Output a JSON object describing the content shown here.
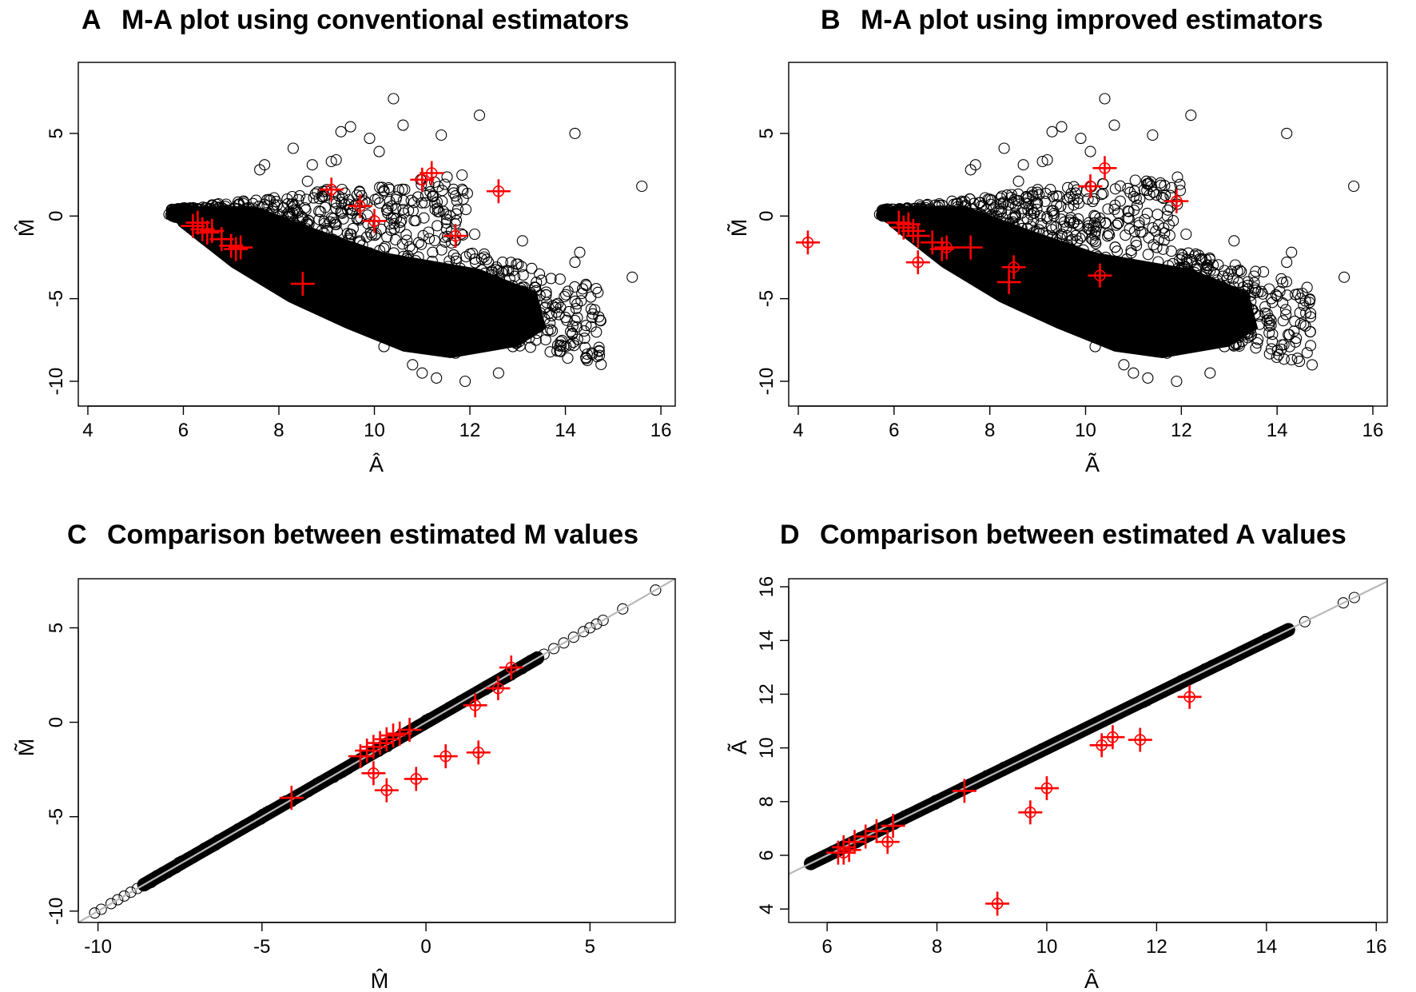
{
  "figure": {
    "colors": {
      "circle": "#000000",
      "highlight": "#ff0000",
      "identity_line": "#b8b8b8",
      "band_core": "#d0d0d0"
    }
  },
  "chart_data": [
    {
      "id": "A",
      "panel_letter": "A",
      "type": "scatter",
      "title": "M-A plot using conventional estimators",
      "xlabel": "Â",
      "ylabel": "M̂",
      "xlim": [
        3.8,
        16.3
      ],
      "ylim": [
        -11.5,
        9.3
      ],
      "xticks": [
        4,
        6,
        8,
        10,
        12,
        14,
        16
      ],
      "yticks": [
        -10,
        -5,
        0,
        5
      ],
      "identity_line": false,
      "background_points": [
        [
          10.4,
          7.1
        ],
        [
          10.6,
          5.5
        ],
        [
          9.5,
          5.4
        ],
        [
          9.3,
          5.1
        ],
        [
          9.9,
          4.7
        ],
        [
          11.4,
          4.9
        ],
        [
          12.2,
          6.1
        ],
        [
          14.2,
          5.0
        ],
        [
          15.6,
          1.8
        ],
        [
          10.1,
          3.9
        ],
        [
          9.1,
          3.3
        ],
        [
          9.2,
          3.4
        ],
        [
          8.3,
          4.1
        ],
        [
          8.7,
          3.1
        ],
        [
          7.7,
          3.1
        ],
        [
          7.6,
          2.8
        ],
        [
          8.6,
          2.1
        ],
        [
          8.9,
          1.2
        ],
        [
          9.0,
          1.6
        ],
        [
          9.3,
          0.3
        ],
        [
          10.6,
          0.4
        ],
        [
          11.5,
          0.1
        ],
        [
          12.1,
          -1.1
        ],
        [
          12.3,
          -2.3
        ],
        [
          12.0,
          -2.3
        ],
        [
          13.1,
          -1.5
        ],
        [
          14.3,
          -2.2
        ],
        [
          14.2,
          -2.8
        ],
        [
          15.4,
          -3.7
        ],
        [
          11.5,
          -3.5
        ],
        [
          11.7,
          -3.5
        ],
        [
          12.9,
          -3.3
        ],
        [
          12.6,
          -3.3
        ],
        [
          13.1,
          -4.3
        ],
        [
          12.1,
          -3.9
        ],
        [
          13.6,
          -4.6
        ],
        [
          14.4,
          -7.4
        ],
        [
          14.7,
          -6.1
        ],
        [
          12.9,
          -7.9
        ],
        [
          12.6,
          -9.5
        ],
        [
          11.9,
          -10.0
        ],
        [
          11.3,
          -9.8
        ],
        [
          11.0,
          -9.5
        ],
        [
          10.8,
          -9.0
        ],
        [
          13.4,
          -7.1
        ],
        [
          10.2,
          -7.9
        ],
        [
          12.0,
          -6.5
        ],
        [
          11.7,
          -8.3
        ],
        [
          14.1,
          -7.8
        ],
        [
          13.9,
          -7.6
        ],
        [
          8.1,
          -2.0
        ],
        [
          7.3,
          -1.4
        ],
        [
          8.6,
          -0.5
        ],
        [
          9.7,
          -1.5
        ],
        [
          10.3,
          -2.8
        ],
        [
          7.0,
          0.2
        ],
        [
          6.7,
          0.7
        ],
        [
          7.9,
          1.1
        ]
      ],
      "highlights": [
        {
          "x": 6.2,
          "y": -0.6,
          "circled": false
        },
        {
          "x": 6.3,
          "y": -0.4,
          "circled": false
        },
        {
          "x": 6.4,
          "y": -0.8,
          "circled": false
        },
        {
          "x": 6.5,
          "y": -1.0,
          "circled": false
        },
        {
          "x": 6.6,
          "y": -0.9,
          "circled": false
        },
        {
          "x": 6.8,
          "y": -1.4,
          "circled": false
        },
        {
          "x": 7.0,
          "y": -1.8,
          "circled": false
        },
        {
          "x": 7.1,
          "y": -2.0,
          "circled": false
        },
        {
          "x": 7.2,
          "y": -1.9,
          "circled": false
        },
        {
          "x": 8.5,
          "y": -4.1,
          "circled": false
        },
        {
          "x": 9.1,
          "y": 1.6,
          "circled": true
        },
        {
          "x": 9.7,
          "y": 0.6,
          "circled": true
        },
        {
          "x": 10.0,
          "y": -0.3,
          "circled": true
        },
        {
          "x": 11.0,
          "y": 2.2,
          "circled": true
        },
        {
          "x": 11.2,
          "y": 2.6,
          "circled": true
        },
        {
          "x": 11.7,
          "y": -1.2,
          "circled": true
        },
        {
          "x": 12.6,
          "y": 1.5,
          "circled": true
        }
      ]
    },
    {
      "id": "B",
      "panel_letter": "B",
      "type": "scatter",
      "title": "M-A plot using improved estimators",
      "xlabel": "Ã",
      "ylabel": "M̃",
      "xlim": [
        3.8,
        16.3
      ],
      "ylim": [
        -11.5,
        9.3
      ],
      "xticks": [
        4,
        6,
        8,
        10,
        12,
        14,
        16
      ],
      "yticks": [
        -10,
        -5,
        0,
        5
      ],
      "identity_line": false,
      "background_points": [
        [
          10.4,
          7.1
        ],
        [
          10.6,
          5.5
        ],
        [
          9.5,
          5.4
        ],
        [
          9.3,
          5.1
        ],
        [
          9.9,
          4.7
        ],
        [
          11.4,
          4.9
        ],
        [
          12.2,
          6.1
        ],
        [
          14.2,
          5.0
        ],
        [
          15.6,
          1.8
        ],
        [
          10.1,
          3.9
        ],
        [
          9.1,
          3.3
        ],
        [
          9.2,
          3.4
        ],
        [
          8.3,
          4.1
        ],
        [
          8.7,
          3.1
        ],
        [
          7.7,
          3.1
        ],
        [
          7.6,
          2.8
        ],
        [
          8.6,
          2.1
        ],
        [
          8.9,
          1.2
        ],
        [
          9.0,
          1.6
        ],
        [
          9.3,
          0.3
        ],
        [
          10.6,
          0.4
        ],
        [
          11.5,
          0.1
        ],
        [
          12.1,
          -1.1
        ],
        [
          12.3,
          -2.3
        ],
        [
          12.0,
          -2.3
        ],
        [
          13.1,
          -1.5
        ],
        [
          14.3,
          -2.2
        ],
        [
          14.2,
          -2.8
        ],
        [
          15.4,
          -3.7
        ],
        [
          11.5,
          -3.5
        ],
        [
          11.7,
          -3.5
        ],
        [
          12.9,
          -3.3
        ],
        [
          12.6,
          -3.3
        ],
        [
          13.1,
          -4.3
        ],
        [
          12.1,
          -3.9
        ],
        [
          13.6,
          -4.6
        ],
        [
          14.4,
          -7.4
        ],
        [
          14.7,
          -6.1
        ],
        [
          12.9,
          -7.9
        ],
        [
          12.6,
          -9.5
        ],
        [
          11.9,
          -10.0
        ],
        [
          11.3,
          -9.8
        ],
        [
          11.0,
          -9.5
        ],
        [
          10.8,
          -9.0
        ],
        [
          13.4,
          -7.1
        ],
        [
          10.2,
          -7.9
        ],
        [
          12.0,
          -6.5
        ],
        [
          11.7,
          -8.3
        ],
        [
          14.1,
          -7.8
        ],
        [
          13.9,
          -7.6
        ],
        [
          8.1,
          -2.0
        ],
        [
          7.3,
          -1.4
        ],
        [
          8.6,
          -0.5
        ],
        [
          9.7,
          -1.5
        ],
        [
          10.3,
          -2.8
        ],
        [
          7.0,
          0.2
        ],
        [
          6.7,
          0.7
        ],
        [
          7.9,
          1.1
        ]
      ],
      "highlights": [
        {
          "x": 4.2,
          "y": -1.6,
          "circled": true
        },
        {
          "x": 6.1,
          "y": -0.4,
          "circled": false
        },
        {
          "x": 6.2,
          "y": -0.7,
          "circled": false
        },
        {
          "x": 6.3,
          "y": -0.5,
          "circled": false
        },
        {
          "x": 6.4,
          "y": -0.9,
          "circled": false
        },
        {
          "x": 6.5,
          "y": -1.2,
          "circled": false
        },
        {
          "x": 6.5,
          "y": -2.8,
          "circled": true
        },
        {
          "x": 6.8,
          "y": -1.6,
          "circled": false
        },
        {
          "x": 7.0,
          "y": -2.0,
          "circled": false
        },
        {
          "x": 7.1,
          "y": -1.9,
          "circled": true
        },
        {
          "x": 7.6,
          "y": -1.9,
          "circled": false
        },
        {
          "x": 8.5,
          "y": -3.1,
          "circled": true
        },
        {
          "x": 8.4,
          "y": -4.0,
          "circled": false
        },
        {
          "x": 10.1,
          "y": 1.8,
          "circled": true
        },
        {
          "x": 10.4,
          "y": 2.9,
          "circled": true
        },
        {
          "x": 10.3,
          "y": -3.6,
          "circled": true
        },
        {
          "x": 11.9,
          "y": 0.9,
          "circled": true
        }
      ]
    },
    {
      "id": "C",
      "panel_letter": "C",
      "type": "scatter",
      "title": "Comparison between estimated M values",
      "xlabel": "M̂",
      "ylabel": "M̃",
      "xlim": [
        -10.6,
        7.6
      ],
      "ylim": [
        -10.6,
        7.6
      ],
      "xticks": [
        -10,
        -5,
        0,
        5
      ],
      "yticks": [
        -10,
        -5,
        0,
        5
      ],
      "identity_line": true,
      "band_range": [
        -8.6,
        3.4
      ],
      "background_points": [
        [
          -10.1,
          -10.1
        ],
        [
          -9.9,
          -9.9
        ],
        [
          -9.6,
          -9.6
        ],
        [
          -9.4,
          -9.4
        ],
        [
          -9.2,
          -9.2
        ],
        [
          -9.0,
          -9.0
        ],
        [
          -8.8,
          -8.8
        ],
        [
          -2.5,
          -2.5
        ],
        [
          -1.5,
          -1.5
        ],
        [
          -0.5,
          -0.5
        ],
        [
          0.5,
          0.5
        ],
        [
          1.3,
          1.3
        ],
        [
          1.9,
          1.9
        ],
        [
          2.3,
          2.3
        ],
        [
          2.7,
          2.7
        ],
        [
          3.0,
          3.0
        ],
        [
          3.6,
          3.6
        ],
        [
          3.9,
          3.9
        ],
        [
          4.2,
          4.2
        ],
        [
          4.5,
          4.5
        ],
        [
          4.8,
          4.8
        ],
        [
          5.0,
          5.0
        ],
        [
          5.2,
          5.2
        ],
        [
          5.4,
          5.4
        ],
        [
          6.0,
          6.0
        ],
        [
          7.0,
          7.0
        ]
      ],
      "highlights": [
        {
          "x": -4.1,
          "y": -4.0,
          "circled": false
        },
        {
          "x": -2.0,
          "y": -1.8,
          "circled": false
        },
        {
          "x": -1.8,
          "y": -1.5,
          "circled": false
        },
        {
          "x": -1.6,
          "y": -1.3,
          "circled": false
        },
        {
          "x": -1.4,
          "y": -1.1,
          "circled": false
        },
        {
          "x": -1.2,
          "y": -0.9,
          "circled": false
        },
        {
          "x": -1.0,
          "y": -0.7,
          "circled": false
        },
        {
          "x": -0.8,
          "y": -0.6,
          "circled": false
        },
        {
          "x": -0.5,
          "y": -0.4,
          "circled": false
        },
        {
          "x": -1.6,
          "y": -2.7,
          "circled": true
        },
        {
          "x": -1.2,
          "y": -3.6,
          "circled": true
        },
        {
          "x": -0.3,
          "y": -3.0,
          "circled": true
        },
        {
          "x": 0.6,
          "y": -1.8,
          "circled": true
        },
        {
          "x": 1.6,
          "y": -1.6,
          "circled": true
        },
        {
          "x": 1.5,
          "y": 0.9,
          "circled": true
        },
        {
          "x": 2.2,
          "y": 1.8,
          "circled": true
        },
        {
          "x": 2.6,
          "y": 2.9,
          "circled": true
        }
      ]
    },
    {
      "id": "D",
      "panel_letter": "D",
      "type": "scatter",
      "title": "Comparison between estimated A values",
      "xlabel": "Â",
      "ylabel": "Ã",
      "xlim": [
        5.3,
        16.2
      ],
      "ylim": [
        3.5,
        16.3
      ],
      "xticks": [
        6,
        8,
        10,
        12,
        14,
        16
      ],
      "yticks": [
        4,
        6,
        8,
        10,
        12,
        14,
        16
      ],
      "identity_line": true,
      "band_range": [
        5.7,
        14.4
      ],
      "background_points": [
        [
          5.7,
          5.7
        ],
        [
          5.9,
          5.9
        ],
        [
          14.2,
          14.2
        ],
        [
          14.4,
          14.4
        ],
        [
          14.7,
          14.7
        ],
        [
          15.4,
          15.4
        ],
        [
          15.6,
          15.6
        ]
      ],
      "highlights": [
        {
          "x": 6.2,
          "y": 6.1,
          "circled": false
        },
        {
          "x": 6.3,
          "y": 6.3,
          "circled": false
        },
        {
          "x": 6.4,
          "y": 6.2,
          "circled": false
        },
        {
          "x": 6.5,
          "y": 6.5,
          "circled": false
        },
        {
          "x": 6.7,
          "y": 6.7,
          "circled": false
        },
        {
          "x": 6.9,
          "y": 6.9,
          "circled": false
        },
        {
          "x": 7.2,
          "y": 7.1,
          "circled": false
        },
        {
          "x": 8.5,
          "y": 8.4,
          "circled": false
        },
        {
          "x": 6.3,
          "y": 6.1,
          "circled": true
        },
        {
          "x": 7.1,
          "y": 6.5,
          "circled": true
        },
        {
          "x": 9.1,
          "y": 4.2,
          "circled": true
        },
        {
          "x": 9.7,
          "y": 7.6,
          "circled": true
        },
        {
          "x": 10.0,
          "y": 8.5,
          "circled": true
        },
        {
          "x": 11.0,
          "y": 10.1,
          "circled": true
        },
        {
          "x": 11.2,
          "y": 10.4,
          "circled": true
        },
        {
          "x": 11.7,
          "y": 10.3,
          "circled": true
        },
        {
          "x": 12.6,
          "y": 11.9,
          "circled": true
        }
      ]
    }
  ]
}
